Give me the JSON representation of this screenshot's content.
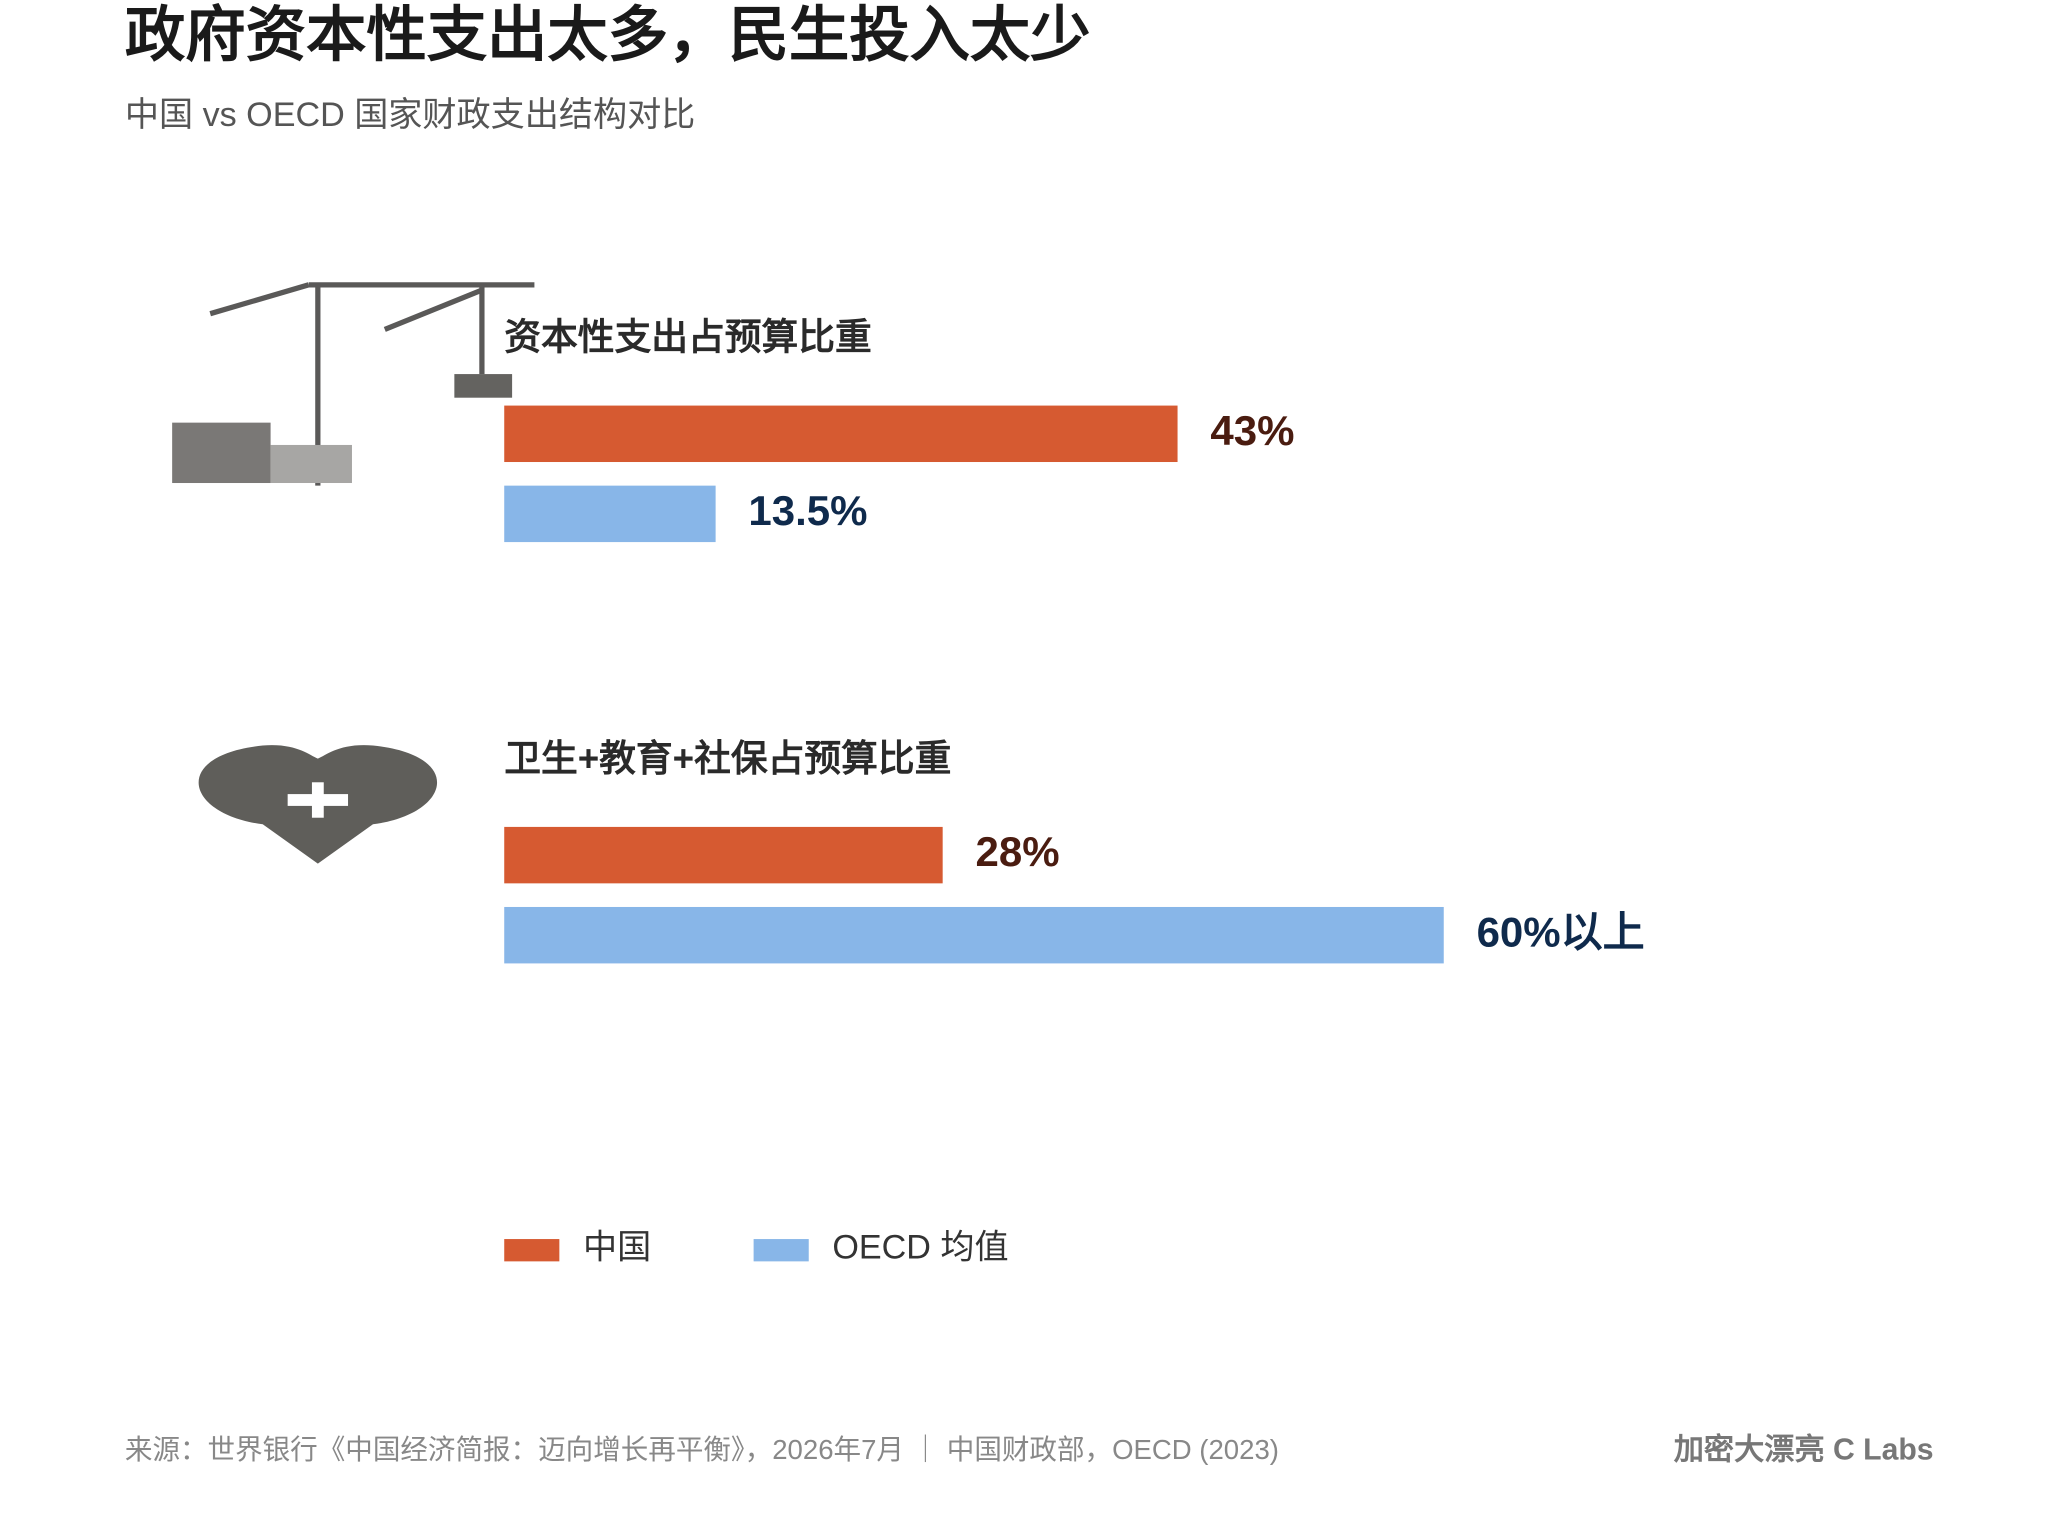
{
  "chart_data": {
    "type": "bar",
    "orientation": "horizontal",
    "title": "政府资本性支出太多，民生投入太少",
    "subtitle": "中国 vs OECD 国家财政支出结构对比",
    "categories": [
      "资本性支出占预算比重",
      "卫生+教育+社保占预算比重"
    ],
    "series": [
      {
        "name": "中国",
        "color": "#d65a31",
        "label_color": "#4a1c10",
        "values": [
          43,
          28
        ],
        "value_labels": [
          "43%",
          "28%"
        ]
      },
      {
        "name": "OECD 均值",
        "color": "#88b6e8",
        "label_color": "#0f2a4c",
        "values": [
          13.5,
          60
        ],
        "value_labels": [
          "13.5%",
          "60%以上"
        ]
      }
    ],
    "source": "来源：世界银行《中国经济简报：迈向增长再平衡》，2026年7月 ｜ 中国财政部，OECD (2023)",
    "credit": "加密大漂亮 C Labs"
  }
}
